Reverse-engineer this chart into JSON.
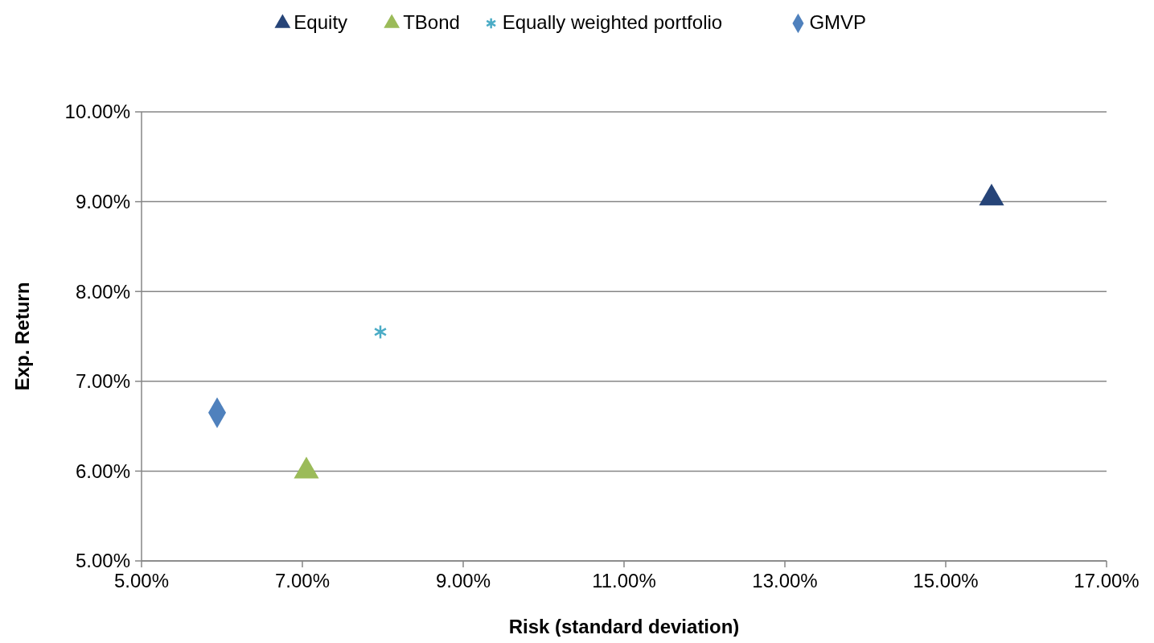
{
  "chart_data": {
    "type": "scatter",
    "xlabel": "Risk (standard deviation)",
    "ylabel": "Exp. Return",
    "series": [
      {
        "name": "Equity",
        "color": "#264478",
        "marker": "triangle",
        "x": [
          15.57
        ],
        "values": [
          9.04
        ]
      },
      {
        "name": "TBond",
        "color": "#9bbb59",
        "marker": "triangle",
        "x": [
          7.05
        ],
        "values": [
          6.0
        ]
      },
      {
        "name": "Equally weighted portfolio",
        "color": "#4bacc6",
        "marker": "cross",
        "x": [
          7.97
        ],
        "values": [
          7.55
        ]
      },
      {
        "name": "GMVP",
        "color": "#4f81bd",
        "marker": "diamond",
        "x": [
          5.94
        ],
        "values": [
          6.65
        ]
      }
    ],
    "xlim": [
      5,
      17
    ],
    "xticks": [
      {
        "value": 5,
        "label": "5.00%"
      },
      {
        "value": 7,
        "label": "7.00%"
      },
      {
        "value": 9,
        "label": "9.00%"
      },
      {
        "value": 11,
        "label": "11.00%"
      },
      {
        "value": 13,
        "label": "13.00%"
      },
      {
        "value": 15,
        "label": "15.00%"
      },
      {
        "value": 17,
        "label": "17.00%"
      }
    ],
    "ylim": [
      5,
      10
    ],
    "yticks": [
      {
        "value": 5,
        "label": "5.00%"
      },
      {
        "value": 6,
        "label": "6.00%"
      },
      {
        "value": 7,
        "label": "7.00%"
      },
      {
        "value": 8,
        "label": "8.00%"
      },
      {
        "value": 9,
        "label": "9.00%"
      },
      {
        "value": 10,
        "label": "10.00%"
      }
    ],
    "grid": "y",
    "legend": "top"
  }
}
